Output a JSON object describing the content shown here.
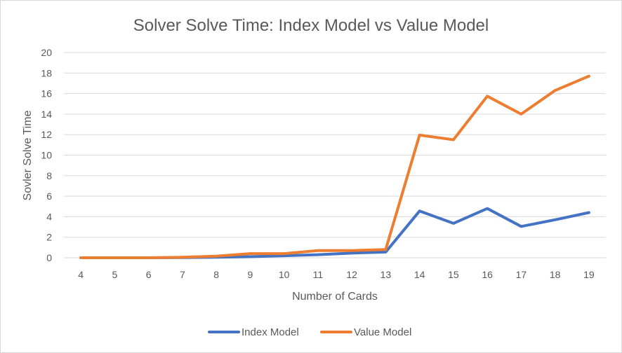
{
  "chart_data": {
    "type": "line",
    "title": "Solver Solve Time: Index Model vs Value Model",
    "xlabel": "Number of Cards",
    "ylabel": "Sovler Solve Time",
    "categories": [
      "4",
      "5",
      "6",
      "7",
      "8",
      "9",
      "10",
      "11",
      "12",
      "13",
      "14",
      "15",
      "16",
      "17",
      "18",
      "19"
    ],
    "ylim": [
      0,
      20
    ],
    "yticks": [
      "0",
      "2",
      "4",
      "6",
      "8",
      "10",
      "12",
      "14",
      "16",
      "18",
      "20"
    ],
    "grid": true,
    "legend_position": "bottom",
    "series": [
      {
        "name": "Index Model",
        "color": "#4472c4",
        "values": [
          0,
          0,
          0,
          0.02,
          0.05,
          0.1,
          0.2,
          0.3,
          0.45,
          0.55,
          4.55,
          3.35,
          4.8,
          3.05,
          3.7,
          4.4
        ]
      },
      {
        "name": "Value Model",
        "color": "#ed7d31",
        "values": [
          0,
          0,
          0,
          0.05,
          0.15,
          0.4,
          0.4,
          0.7,
          0.7,
          0.8,
          11.95,
          11.5,
          15.75,
          14.0,
          16.3,
          17.7
        ]
      }
    ]
  }
}
